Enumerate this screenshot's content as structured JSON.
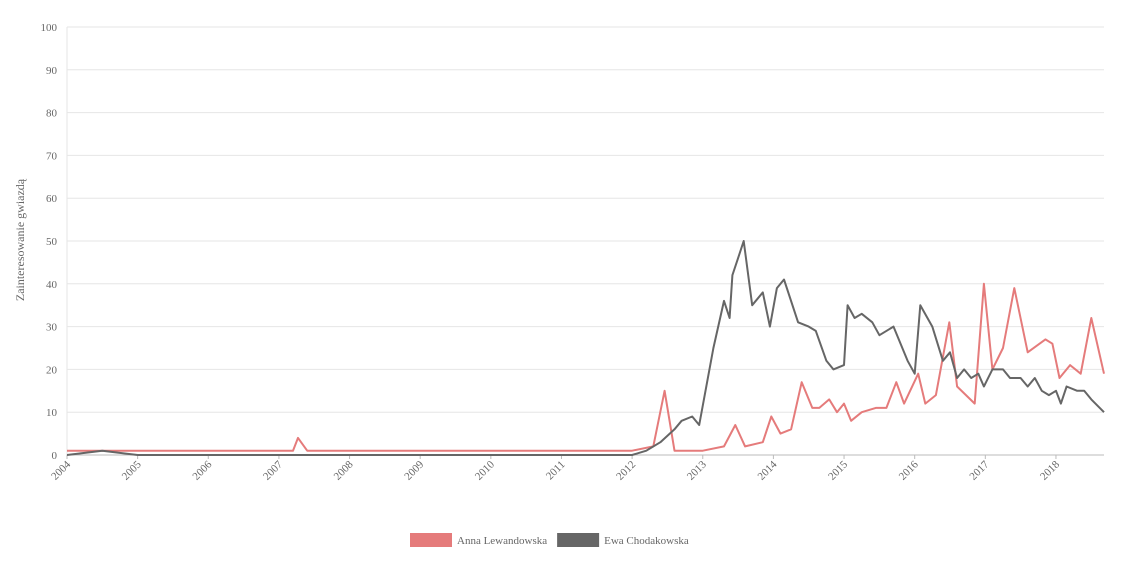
{
  "chart_data": {
    "type": "line",
    "y_label": "Zainteresowanie gwiazdą",
    "xlim": [
      2004,
      2018.68
    ],
    "xticks": [
      2004,
      2005,
      2006,
      2007,
      2008,
      2009,
      2010,
      2011,
      2012,
      2013,
      2014,
      2015,
      2016,
      2017,
      2018
    ],
    "ylim": [
      0,
      100
    ],
    "yticks": [
      0,
      10,
      20,
      30,
      40,
      50,
      60,
      70,
      80,
      90,
      100
    ],
    "grid": true,
    "legend": "bottom",
    "series": [
      {
        "name": "Anna Lewandowska",
        "color": "#e57b7b",
        "x": [
          2004,
          2004.5,
          2005,
          2006,
          2006.85,
          2007.2,
          2007.27,
          2007.4,
          2008,
          2009,
          2010,
          2011,
          2012,
          2012.3,
          2012.46,
          2012.6,
          2013,
          2013.3,
          2013.46,
          2013.6,
          2013.85,
          2013.97,
          2014.1,
          2014.25,
          2014.4,
          2014.55,
          2014.65,
          2014.79,
          2014.9,
          2015,
          2015.1,
          2015.25,
          2015.45,
          2015.6,
          2015.74,
          2015.85,
          2016.05,
          2016.15,
          2016.3,
          2016.49,
          2016.6,
          2016.85,
          2016.98,
          2017.1,
          2017.25,
          2017.41,
          2017.6,
          2017.85,
          2017.95,
          2018.05,
          2018.2,
          2018.35,
          2018.5,
          2018.68
        ],
        "values": [
          1,
          1,
          1,
          1,
          1,
          1,
          4,
          1,
          1,
          1,
          1,
          1,
          1,
          2,
          15,
          1,
          1,
          2,
          7,
          2,
          3,
          9,
          5,
          6,
          17,
          11,
          11,
          13,
          10,
          12,
          8,
          10,
          11,
          11,
          17,
          12,
          19,
          12,
          14,
          31,
          16,
          12,
          40,
          20,
          25,
          39,
          24,
          27,
          26,
          18,
          21,
          19,
          32,
          19
        ]
      },
      {
        "name": "Ewa Chodakowska",
        "color": "#666666",
        "x": [
          2004,
          2004.5,
          2005,
          2006,
          2007,
          2008,
          2009,
          2010,
          2011,
          2012,
          2012.2,
          2012.4,
          2012.6,
          2012.7,
          2012.85,
          2012.95,
          2013.15,
          2013.3,
          2013.38,
          2013.42,
          2013.5,
          2013.58,
          2013.7,
          2013.85,
          2013.95,
          2014.05,
          2014.15,
          2014.35,
          2014.5,
          2014.6,
          2014.75,
          2014.85,
          2015,
          2015.05,
          2015.15,
          2015.25,
          2015.4,
          2015.5,
          2015.7,
          2015.9,
          2016,
          2016.08,
          2016.25,
          2016.4,
          2016.5,
          2016.6,
          2016.7,
          2016.8,
          2016.9,
          2016.98,
          2017.1,
          2017.25,
          2017.35,
          2017.5,
          2017.6,
          2017.7,
          2017.8,
          2017.9,
          2018,
          2018.07,
          2018.15,
          2018.3,
          2018.4,
          2018.5,
          2018.68
        ],
        "values": [
          0,
          1,
          0,
          0,
          0,
          0,
          0,
          0,
          0,
          0,
          1,
          3,
          6,
          8,
          9,
          7,
          25,
          36,
          32,
          42,
          46,
          50,
          35,
          38,
          30,
          39,
          41,
          31,
          30,
          29,
          22,
          20,
          21,
          35,
          32,
          33,
          31,
          28,
          30,
          22,
          19,
          35,
          30,
          22,
          24,
          18,
          20,
          18,
          19,
          16,
          20,
          20,
          18,
          18,
          16,
          18,
          15,
          14,
          15,
          12,
          16,
          15,
          15,
          13,
          10
        ]
      }
    ]
  }
}
